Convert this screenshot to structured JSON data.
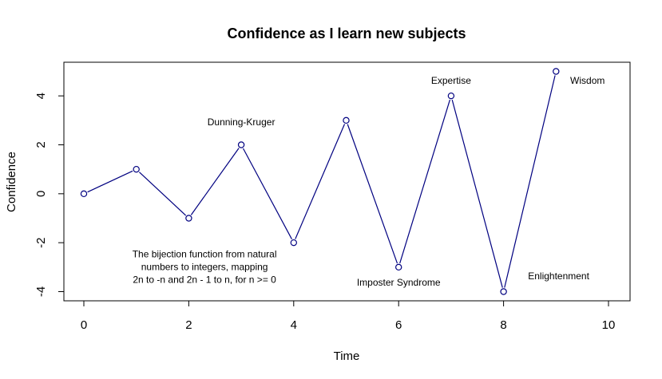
{
  "chart_data": {
    "type": "line",
    "title": "Confidence as I learn new subjects",
    "xlabel": "Time",
    "ylabel": "Confidence",
    "xlim": [
      0,
      10
    ],
    "ylim": [
      -4,
      5
    ],
    "xticks": [
      "0",
      "2",
      "4",
      "6",
      "8",
      "10"
    ],
    "yticks": [
      "-4",
      "-2",
      "0",
      "2",
      "4"
    ],
    "grid": false,
    "colors": {
      "series": "#000080"
    },
    "series": [
      {
        "x": [
          0,
          1,
          2,
          3,
          4,
          5,
          6,
          7,
          8,
          9
        ],
        "y": [
          0,
          1,
          -1,
          2,
          -2,
          3,
          -3,
          4,
          -4,
          5
        ]
      }
    ],
    "annotations": [
      {
        "lines": [
          "Dunning-Kruger"
        ],
        "x": 3,
        "y": 2.8
      },
      {
        "lines": [
          "Expertise"
        ],
        "x": 7,
        "y": 4.5
      },
      {
        "lines": [
          "Wisdom"
        ],
        "x": 9.6,
        "y": 4.5
      },
      {
        "lines": [
          "Imposter Syndrome"
        ],
        "x": 6,
        "y": -3.75
      },
      {
        "lines": [
          "Enlightenment"
        ],
        "x": 9.05,
        "y": -3.5
      },
      {
        "lines": [
          "The bijection function from natural",
          "numbers to integers, mapping",
          "2n to -n and 2n - 1 to n, for n >= 0"
        ],
        "x": 2.3,
        "y": -2.6
      }
    ]
  }
}
